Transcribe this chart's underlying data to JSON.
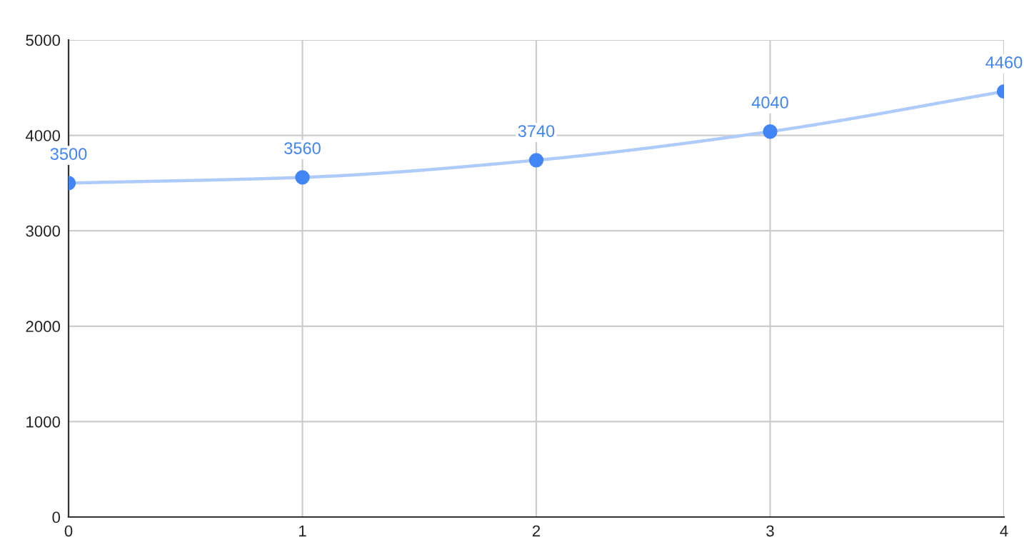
{
  "chart_data": {
    "type": "line",
    "x": [
      0,
      1,
      2,
      3,
      4
    ],
    "series": [
      {
        "color": "#aecbfa",
        "values": [
          3500,
          3560,
          3740,
          4040,
          4460
        ],
        "marker": "none"
      },
      {
        "type": "scatter",
        "color": "#4285f4",
        "values": [
          3500,
          3560,
          3740,
          4040,
          4460
        ],
        "marker": "circle",
        "data_labels": true
      }
    ],
    "xlim": [
      0,
      4
    ],
    "xticks": [
      0,
      1,
      2,
      3,
      4
    ],
    "ylim": [
      0,
      5000
    ],
    "yticks": [
      0,
      1000,
      2000,
      3000,
      4000,
      5000
    ],
    "grid": true
  }
}
